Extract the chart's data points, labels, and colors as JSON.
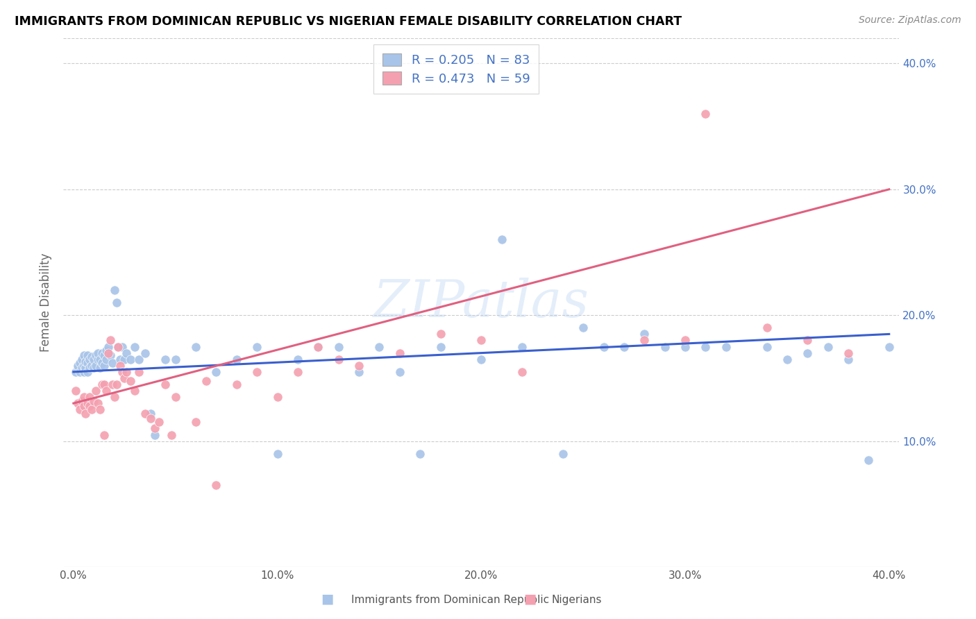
{
  "title": "IMMIGRANTS FROM DOMINICAN REPUBLIC VS NIGERIAN FEMALE DISABILITY CORRELATION CHART",
  "source": "Source: ZipAtlas.com",
  "ylabel": "Female Disability",
  "watermark": "ZIPatlas",
  "blue_R": 0.205,
  "blue_N": 83,
  "pink_R": 0.473,
  "pink_N": 59,
  "blue_color": "#a8c4e8",
  "pink_color": "#f4a0b0",
  "blue_line_color": "#3a5fcd",
  "pink_line_color": "#e06080",
  "blue_label": "Immigrants from Dominican Republic",
  "pink_label": "Nigerians",
  "xlim": [
    -0.005,
    0.405
  ],
  "ylim": [
    0.0,
    0.42
  ],
  "yticks": [
    0.1,
    0.2,
    0.3,
    0.4
  ],
  "xticks": [
    0.0,
    0.1,
    0.2,
    0.3,
    0.4
  ],
  "blue_line_x0": 0.0,
  "blue_line_y0": 0.155,
  "blue_line_x1": 0.4,
  "blue_line_y1": 0.185,
  "pink_line_x0": 0.0,
  "pink_line_y0": 0.13,
  "pink_line_x1": 0.4,
  "pink_line_y1": 0.3,
  "blue_x": [
    0.001,
    0.002,
    0.002,
    0.003,
    0.003,
    0.004,
    0.004,
    0.005,
    0.005,
    0.005,
    0.006,
    0.006,
    0.007,
    0.007,
    0.007,
    0.008,
    0.008,
    0.009,
    0.009,
    0.01,
    0.01,
    0.011,
    0.011,
    0.012,
    0.012,
    0.013,
    0.013,
    0.014,
    0.014,
    0.015,
    0.015,
    0.016,
    0.016,
    0.017,
    0.018,
    0.019,
    0.02,
    0.021,
    0.022,
    0.023,
    0.024,
    0.025,
    0.026,
    0.028,
    0.03,
    0.032,
    0.035,
    0.038,
    0.04,
    0.045,
    0.05,
    0.06,
    0.07,
    0.08,
    0.09,
    0.1,
    0.11,
    0.12,
    0.13,
    0.14,
    0.15,
    0.16,
    0.18,
    0.2,
    0.22,
    0.24,
    0.26,
    0.27,
    0.29,
    0.3,
    0.31,
    0.32,
    0.34,
    0.35,
    0.36,
    0.37,
    0.38,
    0.39,
    0.4,
    0.28,
    0.25,
    0.21,
    0.17
  ],
  "blue_y": [
    0.155,
    0.158,
    0.16,
    0.155,
    0.162,
    0.158,
    0.165,
    0.155,
    0.16,
    0.168,
    0.158,
    0.163,
    0.155,
    0.162,
    0.168,
    0.158,
    0.165,
    0.16,
    0.167,
    0.158,
    0.165,
    0.16,
    0.168,
    0.165,
    0.17,
    0.158,
    0.165,
    0.162,
    0.17,
    0.16,
    0.168,
    0.172,
    0.165,
    0.175,
    0.168,
    0.162,
    0.22,
    0.21,
    0.175,
    0.165,
    0.175,
    0.165,
    0.17,
    0.165,
    0.175,
    0.165,
    0.17,
    0.122,
    0.105,
    0.165,
    0.165,
    0.175,
    0.155,
    0.165,
    0.175,
    0.09,
    0.165,
    0.175,
    0.175,
    0.155,
    0.175,
    0.155,
    0.175,
    0.165,
    0.175,
    0.09,
    0.175,
    0.175,
    0.175,
    0.175,
    0.175,
    0.175,
    0.175,
    0.165,
    0.17,
    0.175,
    0.165,
    0.085,
    0.175,
    0.185,
    0.19,
    0.26,
    0.09
  ],
  "pink_x": [
    0.001,
    0.002,
    0.003,
    0.004,
    0.005,
    0.005,
    0.006,
    0.007,
    0.008,
    0.008,
    0.009,
    0.01,
    0.011,
    0.012,
    0.013,
    0.014,
    0.015,
    0.016,
    0.017,
    0.018,
    0.019,
    0.02,
    0.021,
    0.022,
    0.023,
    0.024,
    0.025,
    0.026,
    0.028,
    0.03,
    0.032,
    0.035,
    0.038,
    0.04,
    0.042,
    0.045,
    0.05,
    0.06,
    0.07,
    0.08,
    0.09,
    0.1,
    0.11,
    0.12,
    0.13,
    0.14,
    0.16,
    0.18,
    0.2,
    0.22,
    0.28,
    0.3,
    0.31,
    0.34,
    0.36,
    0.38,
    0.065,
    0.048,
    0.015
  ],
  "pink_y": [
    0.14,
    0.13,
    0.125,
    0.132,
    0.128,
    0.135,
    0.122,
    0.13,
    0.128,
    0.135,
    0.125,
    0.132,
    0.14,
    0.13,
    0.125,
    0.145,
    0.145,
    0.14,
    0.17,
    0.18,
    0.145,
    0.135,
    0.145,
    0.175,
    0.16,
    0.155,
    0.15,
    0.155,
    0.148,
    0.14,
    0.155,
    0.122,
    0.118,
    0.11,
    0.115,
    0.145,
    0.135,
    0.115,
    0.065,
    0.145,
    0.155,
    0.135,
    0.155,
    0.175,
    0.165,
    0.16,
    0.17,
    0.185,
    0.18,
    0.155,
    0.18,
    0.18,
    0.36,
    0.19,
    0.18,
    0.17,
    0.148,
    0.105,
    0.105
  ]
}
